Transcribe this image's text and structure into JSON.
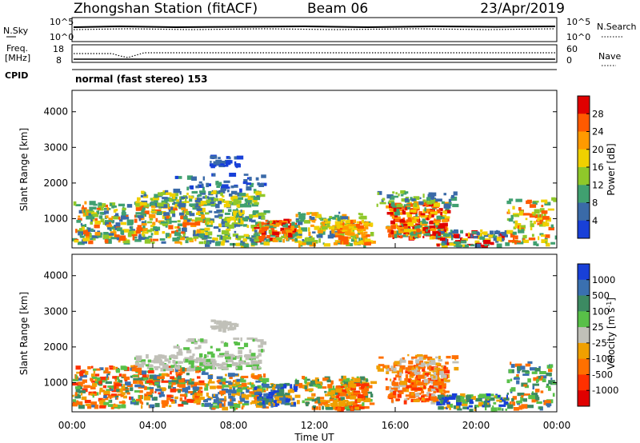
{
  "header": {
    "station": "Zhongshan Station (fitACF)",
    "beam": "Beam 06",
    "date": "23/Apr/2019"
  },
  "aux_panels": {
    "nsky_label": "N.Sky",
    "nsearch_label": "N.Search",
    "nsky_ticks": [
      "10^5",
      "10^0"
    ],
    "nsearch_ticks": [
      "10^5",
      "10^0"
    ],
    "freq_label_1": "Freq.",
    "freq_label_2": "[MHz]",
    "freq_ticks": [
      "18",
      "8"
    ],
    "nave_label": "Nave",
    "nave_ticks": [
      "60",
      "0"
    ],
    "cpid_label": "CPID",
    "cpid_value": "normal (fast stereo) 153"
  },
  "chart_data": [
    {
      "type": "heatmap",
      "name": "power",
      "ylabel": "Slant Range [km]",
      "yticks": [
        1000,
        2000,
        3000,
        4000
      ],
      "ylim": [
        180,
        4600
      ],
      "xlim": [
        0,
        24
      ],
      "colorbar": {
        "label": "Power [dB]",
        "ticks": [
          "28",
          "24",
          "20",
          "16",
          "12",
          "8",
          "4"
        ],
        "colors": [
          "#e00000",
          "#ff5a00",
          "#ff9a00",
          "#f0d000",
          "#8fc82a",
          "#40a070",
          "#3a6aa8",
          "#1840d8"
        ]
      }
    },
    {
      "type": "heatmap",
      "name": "velocity",
      "ylabel": "Slant Range [km]",
      "yticks": [
        1000,
        2000,
        3000,
        4000
      ],
      "ylim": [
        180,
        4600
      ],
      "xlim": [
        0,
        24
      ],
      "xlabel": "Time UT",
      "xticks": [
        "00:00",
        "04:00",
        "08:00",
        "12:00",
        "16:00",
        "20:00",
        "00:00"
      ],
      "colorbar": {
        "label": "Velocity [m s",
        "label_sup": "-1",
        "label_end": "]",
        "ticks": [
          "1000",
          "500",
          "100",
          "25",
          "-25",
          "-100",
          "-500",
          "-1000"
        ],
        "colors": [
          "#1840d8",
          "#3a70b0",
          "#3c8a62",
          "#58c048",
          "#c0c0b8",
          "#f0a000",
          "#ff7000",
          "#ff3000",
          "#e00000"
        ]
      }
    }
  ]
}
